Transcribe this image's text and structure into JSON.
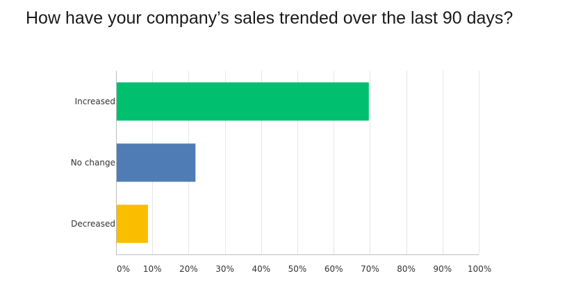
{
  "chart_data": {
    "type": "bar",
    "orientation": "horizontal",
    "title": "How have your company’s sales trended over the last 90 days?",
    "categories": [
      "Increased",
      "No change",
      "Decreased"
    ],
    "values": [
      69.7,
      21.9,
      8.8
    ],
    "colors": [
      "#00bf6f",
      "#507cb6",
      "#f9be00"
    ],
    "xlim": [
      0,
      100
    ],
    "xticks": [
      "0%",
      "10%",
      "20%",
      "30%",
      "40%",
      "50%",
      "60%",
      "70%",
      "80%",
      "90%",
      "100%"
    ],
    "grid": true,
    "xlabel": "",
    "ylabel": ""
  }
}
